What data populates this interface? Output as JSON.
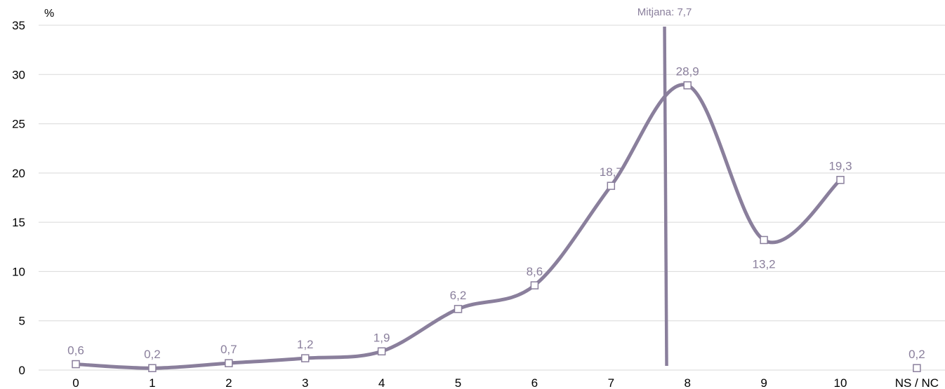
{
  "chart_data": {
    "type": "line",
    "title": "",
    "xlabel": "",
    "ylabel": "%",
    "ylim": [
      0,
      35
    ],
    "yticks": [
      "0",
      "5",
      "10",
      "15",
      "20",
      "25",
      "30",
      "35"
    ],
    "categories": [
      "0",
      "1",
      "2",
      "3",
      "4",
      "5",
      "6",
      "7",
      "8",
      "9",
      "10",
      "NS / NC"
    ],
    "series": [
      {
        "name": "",
        "values": [
          0.6,
          0.2,
          0.7,
          1.2,
          1.9,
          6.2,
          8.6,
          18.7,
          28.9,
          13.2,
          19.3,
          0.2
        ],
        "labels": [
          "0,6",
          "0,2",
          "0,7",
          "1,2",
          "1,9",
          "6,2",
          "8,6",
          "18,7",
          "28,9",
          "13,2",
          "19,3",
          "0,2"
        ],
        "connected_points": 11
      }
    ],
    "mean_line": {
      "value": 7.7,
      "label": "Mitjana: 7,7"
    },
    "grid": true,
    "legend": "none",
    "colors": {
      "line": "#8a7f9c",
      "marker_fill": "#ffffff",
      "grid": "#d9d9d9",
      "label": "#8a7f9c"
    }
  }
}
